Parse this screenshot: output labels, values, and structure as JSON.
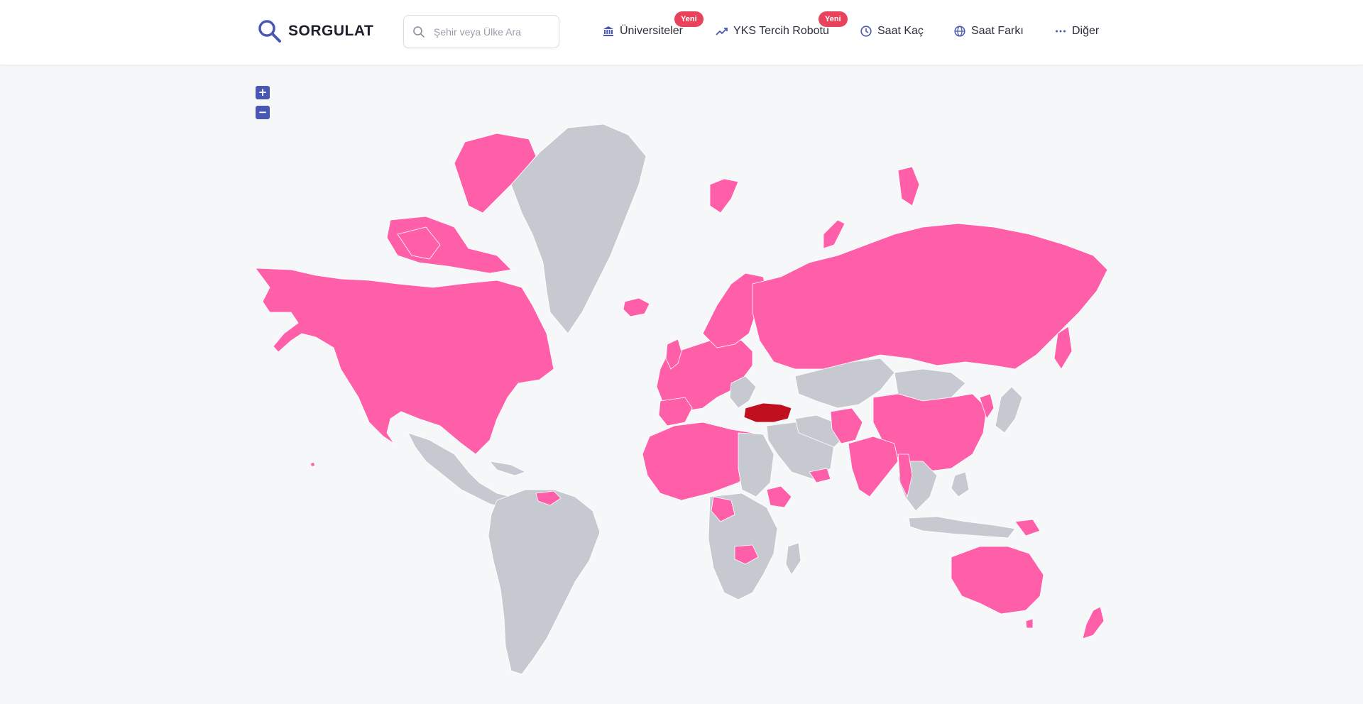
{
  "brand": {
    "name": "SORGULAT",
    "logo_icon": "magnifier-icon"
  },
  "search": {
    "placeholder": "Şehir veya Ülke Ara",
    "value": ""
  },
  "nav": {
    "items": [
      {
        "label": "Üniversiteler",
        "icon": "bank-icon",
        "badge": "Yeni"
      },
      {
        "label": "YKS Tercih Robotu",
        "icon": "trending-up-icon",
        "badge": "Yeni"
      },
      {
        "label": "Saat Kaç",
        "icon": "clock-icon",
        "badge": ""
      },
      {
        "label": "Saat Farkı",
        "icon": "globe-icon",
        "badge": ""
      },
      {
        "label": "Diğer",
        "icon": "more-dots-icon",
        "badge": ""
      }
    ]
  },
  "map": {
    "zoom_in_label": "+",
    "zoom_out_label": "−",
    "colors": {
      "highlighted": "#ff5fa8",
      "selected": "#c0101e",
      "other": "#c6c9cf",
      "background": "#f6f7f9",
      "accent": "#4a57b2",
      "badge": "#e8435a"
    }
  }
}
